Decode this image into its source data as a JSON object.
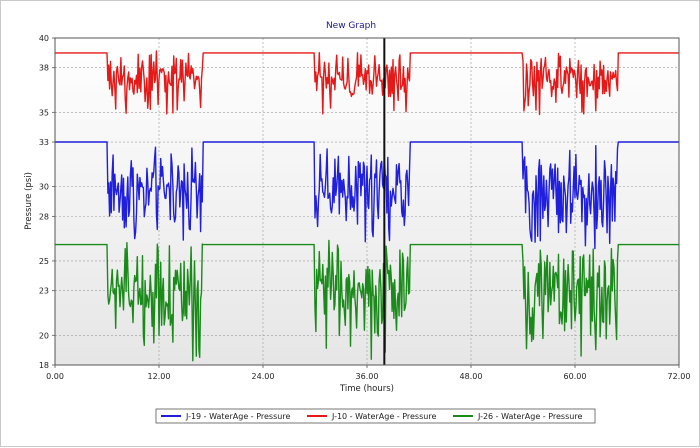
{
  "chart_data": {
    "type": "line",
    "title": "New Graph",
    "xlabel": "Time (hours)",
    "ylabel": "Pressure (psi)",
    "xlim": [
      0,
      72
    ],
    "ylim": [
      18,
      40
    ],
    "x_ticks": [
      "0.00",
      "12.00",
      "24.00",
      "36.00",
      "48.00",
      "60.00",
      "72.00"
    ],
    "y_ticks": [
      "18",
      "20",
      "23",
      "25",
      "28",
      "30",
      "33",
      "35",
      "38",
      "40"
    ],
    "grid": true,
    "legend_position": "bottom",
    "cursor_x": 38.0,
    "series": [
      {
        "name": "J-19 - WaterAge - Pressure",
        "color": "#1f1fdc",
        "base": 33.0,
        "mean": 29.8,
        "amp": 1.9
      },
      {
        "name": "J-10 - WaterAge - Pressure",
        "color": "#e61919",
        "base": 39.0,
        "mean": 37.3,
        "amp": 1.2
      },
      {
        "name": "J-26 - WaterAge - Pressure",
        "color": "#1a8a1a",
        "base": 26.1,
        "mean": 23.0,
        "amp": 2.3
      }
    ],
    "pattern": {
      "period_hours": 24,
      "fluctuation_start_hour": 6,
      "fluctuation_end_hour": 17,
      "step_hours": 0.1
    }
  }
}
